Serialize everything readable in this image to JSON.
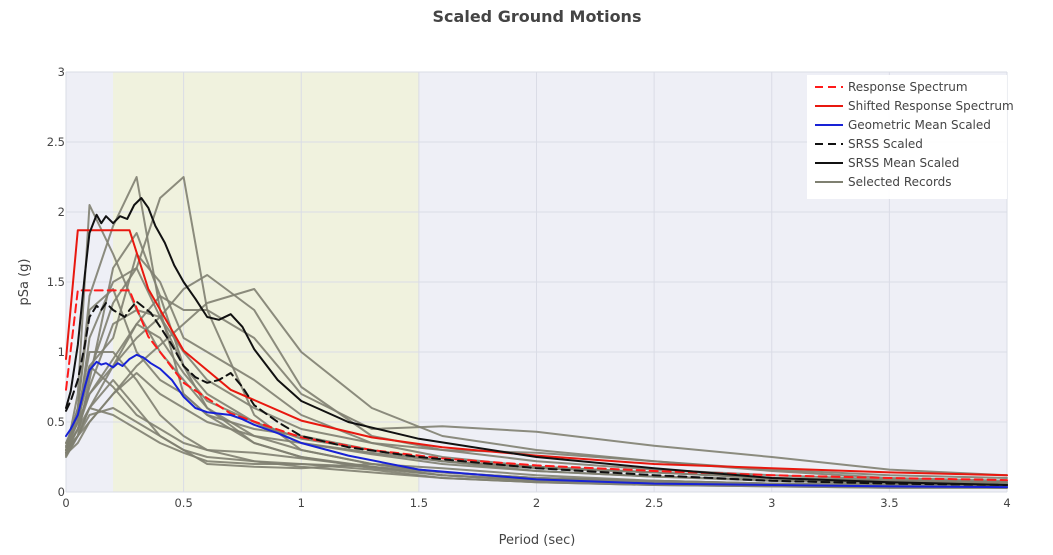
{
  "colors": {
    "plot_background": "#eeeff6",
    "target_band": "#f0f2de",
    "grid": "#dadce6",
    "records": "#7f8071",
    "response_spectrum": "#ff1a1a",
    "shifted_response_spectrum": "#e8180f",
    "geometric_mean_scaled": "#1822d6",
    "srss_scaled": "#111111",
    "srss_mean_scaled": "#111111"
  },
  "chart_data": {
    "type": "line",
    "title": "Scaled Ground Motions",
    "xlabel": "Period (sec)",
    "ylabel": "pSa (g)",
    "xlim": [
      0,
      4
    ],
    "ylim": [
      0,
      3
    ],
    "x_ticks": [
      "0",
      "0.5",
      "1",
      "1.5",
      "2",
      "2.5",
      "3",
      "3.5",
      "4"
    ],
    "y_ticks": [
      "0",
      "0.5",
      "1",
      "1.5",
      "2",
      "2.5",
      "3"
    ],
    "grid": true,
    "legend_position": "top-right",
    "shaded_period_range": [
      0.2,
      1.5
    ],
    "series": [
      {
        "name": "Response Spectrum",
        "style": "dashed",
        "color": "#ff1a1a",
        "x": [
          0,
          0.05,
          0.27,
          0.35,
          0.5,
          0.7,
          1.0,
          1.3,
          1.6,
          2.0,
          2.5,
          3.0,
          3.5,
          4.0
        ],
        "y": [
          0.73,
          1.44,
          1.44,
          1.11,
          0.78,
          0.56,
          0.39,
          0.3,
          0.24,
          0.19,
          0.15,
          0.12,
          0.1,
          0.085
        ]
      },
      {
        "name": "Shifted Response Spectrum",
        "style": "solid",
        "color": "#e8180f",
        "x": [
          0,
          0.05,
          0.27,
          0.35,
          0.5,
          0.7,
          1.0,
          1.3,
          1.6,
          2.0,
          2.5,
          3.0,
          3.5,
          4.0
        ],
        "y": [
          0.95,
          1.87,
          1.87,
          1.45,
          1.01,
          0.73,
          0.51,
          0.39,
          0.32,
          0.26,
          0.2,
          0.17,
          0.14,
          0.12
        ]
      },
      {
        "name": "Geometric Mean Scaled",
        "style": "solid",
        "color": "#1822d6",
        "x": [
          0,
          0.02,
          0.05,
          0.08,
          0.1,
          0.13,
          0.15,
          0.17,
          0.2,
          0.22,
          0.24,
          0.27,
          0.3,
          0.33,
          0.36,
          0.4,
          0.45,
          0.5,
          0.55,
          0.6,
          0.65,
          0.7,
          0.75,
          0.8,
          0.9,
          1.0,
          1.2,
          1.5,
          2.0,
          2.5,
          3.0,
          3.5,
          4.0
        ],
        "y": [
          0.4,
          0.45,
          0.55,
          0.75,
          0.87,
          0.93,
          0.91,
          0.92,
          0.89,
          0.92,
          0.9,
          0.95,
          0.98,
          0.96,
          0.92,
          0.88,
          0.8,
          0.68,
          0.6,
          0.57,
          0.56,
          0.55,
          0.52,
          0.48,
          0.42,
          0.35,
          0.26,
          0.16,
          0.09,
          0.06,
          0.05,
          0.04,
          0.035
        ]
      },
      {
        "name": "SRSS Scaled",
        "style": "dashed",
        "color": "#111111",
        "x": [
          0,
          0.02,
          0.05,
          0.08,
          0.1,
          0.13,
          0.15,
          0.17,
          0.2,
          0.22,
          0.25,
          0.27,
          0.3,
          0.33,
          0.36,
          0.4,
          0.45,
          0.5,
          0.55,
          0.6,
          0.65,
          0.7,
          0.75,
          0.8,
          0.9,
          1.0,
          1.2,
          1.5,
          2.0,
          2.5,
          3.0,
          3.5,
          4.0
        ],
        "y": [
          0.58,
          0.65,
          0.8,
          1.05,
          1.25,
          1.33,
          1.3,
          1.35,
          1.3,
          1.28,
          1.25,
          1.3,
          1.36,
          1.32,
          1.28,
          1.18,
          1.05,
          0.9,
          0.82,
          0.78,
          0.8,
          0.85,
          0.75,
          0.62,
          0.5,
          0.4,
          0.32,
          0.25,
          0.17,
          0.12,
          0.08,
          0.06,
          0.05
        ]
      },
      {
        "name": "SRSS Mean Scaled",
        "style": "solid",
        "color": "#111111",
        "x": [
          0,
          0.02,
          0.05,
          0.08,
          0.1,
          0.13,
          0.15,
          0.17,
          0.2,
          0.23,
          0.26,
          0.29,
          0.32,
          0.35,
          0.38,
          0.42,
          0.46,
          0.5,
          0.55,
          0.6,
          0.65,
          0.7,
          0.75,
          0.8,
          0.9,
          1.0,
          1.2,
          1.5,
          2.0,
          2.5,
          3.0,
          3.5,
          4.0
        ],
        "y": [
          0.6,
          0.72,
          1.05,
          1.55,
          1.85,
          1.98,
          1.92,
          1.97,
          1.92,
          1.97,
          1.95,
          2.05,
          2.1,
          2.03,
          1.9,
          1.78,
          1.62,
          1.5,
          1.38,
          1.25,
          1.23,
          1.27,
          1.18,
          1.02,
          0.8,
          0.65,
          0.5,
          0.38,
          0.25,
          0.17,
          0.1,
          0.07,
          0.05
        ]
      }
    ],
    "record_series": {
      "name": "Selected Records",
      "style": "solid",
      "color": "#7f8071",
      "x": [
        0,
        0.05,
        0.1,
        0.2,
        0.3,
        0.4,
        0.5,
        0.6,
        0.8,
        1.0,
        1.3,
        1.6,
        2.0,
        2.5,
        3.0,
        3.5,
        4.0
      ],
      "records": [
        [
          0.3,
          0.6,
          1.4,
          1.9,
          2.25,
          1.3,
          0.7,
          0.55,
          0.35,
          0.25,
          0.18,
          0.12,
          0.08,
          0.06,
          0.05,
          0.04,
          0.03
        ],
        [
          0.3,
          0.5,
          1.1,
          1.5,
          1.6,
          2.1,
          2.25,
          1.3,
          0.55,
          0.3,
          0.2,
          0.14,
          0.1,
          0.08,
          0.06,
          0.05,
          0.04
        ],
        [
          0.28,
          0.7,
          2.05,
          1.7,
          1.3,
          1.0,
          0.8,
          0.6,
          0.4,
          0.3,
          0.2,
          0.14,
          0.1,
          0.07,
          0.05,
          0.04,
          0.03
        ],
        [
          0.25,
          0.4,
          0.6,
          0.9,
          1.2,
          1.4,
          1.3,
          1.3,
          1.1,
          0.7,
          0.45,
          0.47,
          0.43,
          0.33,
          0.25,
          0.16,
          0.12
        ],
        [
          0.3,
          0.4,
          0.5,
          0.7,
          0.9,
          1.05,
          1.2,
          1.35,
          1.45,
          1.0,
          0.6,
          0.4,
          0.3,
          0.22,
          0.16,
          0.12,
          0.1
        ],
        [
          0.35,
          0.55,
          0.9,
          1.1,
          1.7,
          1.5,
          1.1,
          1.0,
          0.8,
          0.55,
          0.35,
          0.3,
          0.28,
          0.22,
          0.15,
          0.1,
          0.08
        ],
        [
          0.3,
          0.6,
          1.3,
          1.45,
          1.0,
          0.8,
          0.7,
          0.55,
          0.45,
          0.4,
          0.3,
          0.22,
          0.18,
          0.14,
          0.1,
          0.08,
          0.06
        ],
        [
          0.28,
          0.45,
          0.75,
          1.2,
          1.3,
          1.25,
          1.45,
          1.55,
          1.3,
          0.75,
          0.4,
          0.3,
          0.22,
          0.16,
          0.12,
          0.09,
          0.07
        ],
        [
          0.26,
          0.4,
          0.8,
          1.6,
          1.85,
          1.4,
          0.9,
          0.6,
          0.35,
          0.25,
          0.17,
          0.12,
          0.09,
          0.07,
          0.05,
          0.04,
          0.03
        ],
        [
          0.32,
          0.5,
          0.7,
          0.9,
          1.1,
          1.25,
          1.0,
          0.8,
          0.6,
          0.45,
          0.35,
          0.25,
          0.18,
          0.14,
          0.1,
          0.08,
          0.07
        ],
        [
          0.27,
          0.35,
          0.5,
          0.7,
          0.85,
          0.7,
          0.6,
          0.5,
          0.4,
          0.35,
          0.28,
          0.22,
          0.15,
          0.11,
          0.08,
          0.06,
          0.05
        ],
        [
          0.3,
          0.45,
          0.6,
          0.55,
          0.45,
          0.35,
          0.28,
          0.22,
          0.2,
          0.2,
          0.18,
          0.12,
          0.08,
          0.06,
          0.05,
          0.04,
          0.03
        ],
        [
          0.28,
          0.55,
          1.0,
          1.0,
          0.8,
          0.55,
          0.4,
          0.3,
          0.22,
          0.18,
          0.14,
          0.1,
          0.07,
          0.05,
          0.04,
          0.03,
          0.03
        ],
        [
          0.3,
          0.4,
          0.6,
          0.8,
          0.6,
          0.4,
          0.3,
          0.25,
          0.22,
          0.2,
          0.16,
          0.1,
          0.07,
          0.05,
          0.04,
          0.03,
          0.03
        ],
        [
          0.35,
          0.5,
          0.9,
          0.75,
          0.55,
          0.45,
          0.35,
          0.3,
          0.28,
          0.24,
          0.18,
          0.14,
          0.1,
          0.08,
          0.06,
          0.05,
          0.04
        ],
        [
          0.3,
          0.45,
          0.7,
          0.95,
          1.2,
          1.1,
          0.85,
          0.65,
          0.5,
          0.38,
          0.3,
          0.22,
          0.17,
          0.14,
          0.1,
          0.08,
          0.06
        ],
        [
          0.28,
          0.4,
          0.55,
          0.6,
          0.5,
          0.4,
          0.3,
          0.2,
          0.18,
          0.17,
          0.2,
          0.17,
          0.12,
          0.08,
          0.06,
          0.05,
          0.04
        ],
        [
          0.33,
          0.5,
          0.85,
          1.35,
          1.6,
          1.25,
          0.9,
          0.7,
          0.5,
          0.35,
          0.27,
          0.2,
          0.15,
          0.11,
          0.09,
          0.07,
          0.05
        ]
      ]
    }
  },
  "legend": {
    "items": [
      {
        "label": "Response Spectrum",
        "color": "#ff1a1a",
        "style": "dashed"
      },
      {
        "label": "Shifted Response Spectrum",
        "color": "#e8180f",
        "style": "solid"
      },
      {
        "label": "Geometric Mean Scaled",
        "color": "#1822d6",
        "style": "solid"
      },
      {
        "label": "SRSS Scaled",
        "color": "#111111",
        "style": "dashed"
      },
      {
        "label": "SRSS Mean Scaled",
        "color": "#111111",
        "style": "solid"
      },
      {
        "label": "Selected Records",
        "color": "#7f8071",
        "style": "solid"
      }
    ]
  }
}
